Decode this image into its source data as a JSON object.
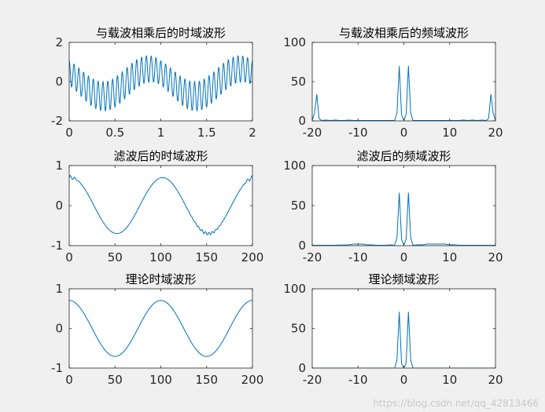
{
  "figure": {
    "background": "#f0f0f0",
    "axes_background": "#ffffff",
    "line_color": "#0072bd",
    "axis_color": "#262626"
  },
  "watermark": "https://blog.csdn.net/qq_42813466",
  "chart_data": [
    {
      "id": "mod-time",
      "type": "line",
      "title": "与载波相乘后的时域波形",
      "xlim": [
        0,
        2
      ],
      "ylim": [
        -2,
        2
      ],
      "xticks": [
        0,
        0.5,
        1,
        1.5,
        2
      ],
      "xtick_labels": [
        "0",
        "0.5",
        "1",
        "1.5",
        "2"
      ],
      "yticks": [
        -2,
        0,
        2
      ],
      "ytick_labels": [
        "-2",
        "0",
        "2"
      ],
      "signal": "cos(2*pi*f*t + pi/4) plus high-frequency carrier ripple (modulated waveform)",
      "signal_params": {
        "base_freq": 1,
        "base_amp": 0.7,
        "carrier_freq": 19,
        "carrier_amp": 0.7,
        "samples": 400
      }
    },
    {
      "id": "mod-freq",
      "type": "line",
      "title": "与载波相乘后的频域波形",
      "xlim": [
        -20,
        20
      ],
      "ylim": [
        0,
        100
      ],
      "xticks": [
        -20,
        -10,
        0,
        10,
        20
      ],
      "xtick_labels": [
        "-20",
        "-10",
        "0",
        "10",
        "20"
      ],
      "yticks": [
        0,
        50,
        100
      ],
      "ytick_labels": [
        "0",
        "50",
        "100"
      ],
      "x": [
        -20,
        -19.5,
        -19,
        -18.5,
        -18,
        -17,
        -16,
        -15,
        -14,
        -13,
        -12,
        -11,
        -10,
        -9,
        -8,
        -7,
        -6,
        -5,
        -4,
        -3,
        -2,
        -1.5,
        -1,
        -0.5,
        0,
        0.5,
        1,
        1.5,
        2,
        3,
        4,
        5,
        6,
        7,
        8,
        9,
        10,
        11,
        12,
        13,
        14,
        15,
        16,
        17,
        18,
        18.5,
        19,
        19.5,
        20
      ],
      "y": [
        0.5,
        10,
        34,
        3,
        0.5,
        1,
        0.5,
        1,
        0.5,
        0.5,
        1,
        0.5,
        0.5,
        0.5,
        0.5,
        0.5,
        0.5,
        0.5,
        0.5,
        0.5,
        0.5,
        10,
        70,
        8,
        0.5,
        8,
        70,
        10,
        0.5,
        0.5,
        0.5,
        0.5,
        0.5,
        0.5,
        0.5,
        0.5,
        0.5,
        0.5,
        0.5,
        1,
        0.5,
        1,
        0.5,
        1,
        0.5,
        3,
        34,
        10,
        0.5
      ]
    },
    {
      "id": "filt-time",
      "type": "line",
      "title": "滤波后的时域波形",
      "xlim": [
        0,
        200
      ],
      "ylim": [
        -1,
        1
      ],
      "xticks": [
        0,
        50,
        100,
        150,
        200
      ],
      "xtick_labels": [
        "0",
        "50",
        "100",
        "150",
        "200"
      ],
      "yticks": [
        -1,
        0,
        1
      ],
      "ytick_labels": [
        "-1",
        "0",
        "1"
      ],
      "signal": "0.7*cos(2*pi*(n-2)/100) with filter edge ripples",
      "signal_params": {
        "amp": 0.7,
        "period": 100,
        "phase_shift": 2,
        "samples": 200
      }
    },
    {
      "id": "filt-freq",
      "type": "line",
      "title": "滤波后的频域波形",
      "xlim": [
        -20,
        20
      ],
      "ylim": [
        0,
        100
      ],
      "xticks": [
        -20,
        -10,
        0,
        10,
        20
      ],
      "xtick_labels": [
        "-20",
        "-10",
        "0",
        "10",
        "20"
      ],
      "yticks": [
        0,
        50,
        100
      ],
      "ytick_labels": [
        "0",
        "50",
        "100"
      ],
      "x": [
        -20,
        -15,
        -12,
        -11,
        -10,
        -9,
        -8,
        -7,
        -6,
        -5,
        -4,
        -3,
        -2,
        -1.5,
        -1,
        -0.5,
        0,
        0.5,
        1,
        1.5,
        2,
        3,
        4,
        5,
        6,
        7,
        8,
        9,
        10,
        11,
        12,
        15,
        20
      ],
      "y": [
        0.5,
        0.5,
        1,
        2,
        2,
        2,
        1,
        1,
        0.5,
        0.5,
        0.5,
        1,
        0.5,
        10,
        66,
        8,
        0.5,
        8,
        66,
        10,
        0.5,
        1,
        1,
        2,
        2,
        2,
        2,
        2,
        1,
        1,
        0.5,
        0.5,
        0.5
      ]
    },
    {
      "id": "ideal-time",
      "type": "line",
      "title": "理论时域波形",
      "xlim": [
        0,
        200
      ],
      "ylim": [
        -1,
        1
      ],
      "xticks": [
        0,
        50,
        100,
        150,
        200
      ],
      "xtick_labels": [
        "0",
        "50",
        "100",
        "150",
        "200"
      ],
      "yticks": [
        -1,
        0,
        1
      ],
      "ytick_labels": [
        "-1",
        "0",
        "1"
      ],
      "signal": "0.707*cos(2*pi*n/100)",
      "signal_params": {
        "amp": 0.707,
        "period": 100,
        "phase_shift": 0,
        "samples": 200
      }
    },
    {
      "id": "ideal-freq",
      "type": "line",
      "title": "理论频域波形",
      "xlim": [
        -20,
        20
      ],
      "ylim": [
        0,
        100
      ],
      "xticks": [
        -20,
        -10,
        0,
        10,
        20
      ],
      "xtick_labels": [
        "-20",
        "-10",
        "0",
        "10",
        "20"
      ],
      "yticks": [
        0,
        50,
        100
      ],
      "ytick_labels": [
        "0",
        "50",
        "100"
      ],
      "x": [
        -20,
        -2,
        -1.5,
        -1,
        -0.5,
        0,
        0.5,
        1,
        1.5,
        2,
        20
      ],
      "y": [
        0,
        0,
        10,
        71,
        6,
        0,
        6,
        71,
        10,
        0,
        0
      ]
    }
  ]
}
